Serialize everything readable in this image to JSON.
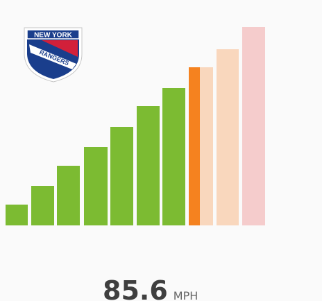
{
  "logo": {
    "top": "NEW YORK",
    "bottom": "RANGERS"
  },
  "speed": {
    "value": 85.6,
    "unit": "MPH"
  }
}
